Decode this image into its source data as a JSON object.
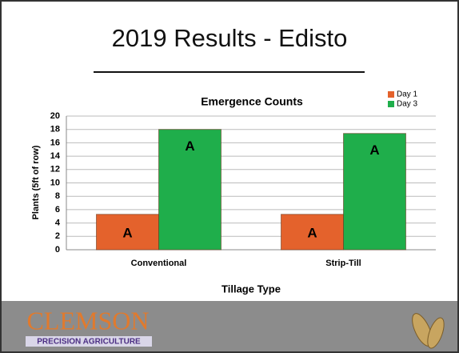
{
  "slide_title": "2019 Results - Edisto",
  "chart_data": {
    "type": "bar",
    "title": "Emergence Counts",
    "x_label": "Tillage Type",
    "y_label": "Plants (5ft of row)",
    "categories": [
      "Conventional",
      "Strip-Till"
    ],
    "series": [
      {
        "name": "Day 1",
        "color": "#e4622c",
        "values": [
          5.3,
          5.3
        ],
        "letters": [
          "A",
          "A"
        ]
      },
      {
        "name": "Day 3",
        "color": "#1fae4b",
        "values": [
          18,
          17.4
        ],
        "letters": [
          "A",
          "A"
        ]
      }
    ],
    "ylim": [
      0,
      20
    ],
    "yticks": [
      0,
      2,
      4,
      6,
      8,
      10,
      12,
      14,
      16,
      18,
      20
    ],
    "grid": true,
    "legend": "top-right"
  },
  "footer": {
    "logo": "CLEMSON",
    "tagline": "PRECISION AGRICULTURE"
  }
}
